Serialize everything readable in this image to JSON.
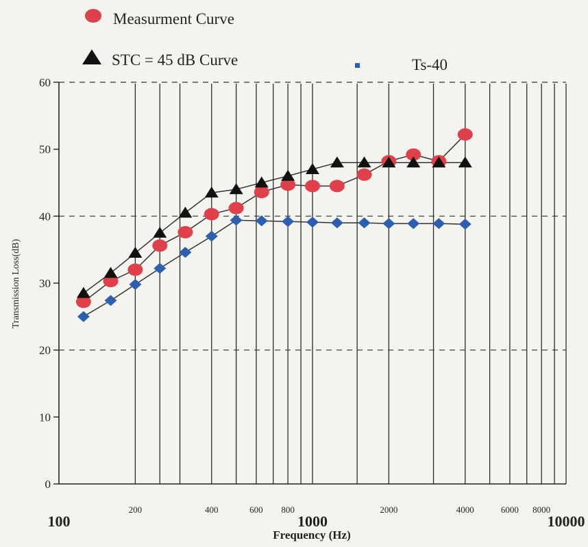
{
  "chart_data": {
    "type": "line",
    "xlabel": "Frequency (Hz)",
    "ylabel": "Transmission Loss(dB)",
    "x_scale": "log",
    "xlim": [
      100,
      10000
    ],
    "ylim": [
      0,
      60
    ],
    "x_ticks": [
      {
        "value": 100,
        "label": "100",
        "size": "large"
      },
      {
        "value": 200,
        "label": "200",
        "size": "small"
      },
      {
        "value": 400,
        "label": "400",
        "size": "small"
      },
      {
        "value": 600,
        "label": "600",
        "size": "small"
      },
      {
        "value": 800,
        "label": "800",
        "size": "small"
      },
      {
        "value": 1000,
        "label": "1000",
        "size": "large"
      },
      {
        "value": 2000,
        "label": "2000",
        "size": "small"
      },
      {
        "value": 4000,
        "label": "4000",
        "size": "small"
      },
      {
        "value": 6000,
        "label": "6000",
        "size": "small"
      },
      {
        "value": 8000,
        "label": "8000",
        "size": "small"
      },
      {
        "value": 10000,
        "label": "10000",
        "size": "large"
      }
    ],
    "x_gridlines": [
      200,
      250,
      300,
      400,
      500,
      600,
      700,
      800,
      900,
      1000,
      1500,
      2000,
      3000,
      4000,
      5000,
      6000,
      7000,
      8000,
      9000,
      10000
    ],
    "y_ticks": [
      {
        "value": 0,
        "label": "0"
      },
      {
        "value": 10,
        "label": "10"
      },
      {
        "value": 20,
        "label": "20"
      },
      {
        "value": 30,
        "label": "30"
      },
      {
        "value": 40,
        "label": "40"
      },
      {
        "value": 50,
        "label": "50"
      },
      {
        "value": 60,
        "label": "60"
      }
    ],
    "y_dashed_gridlines": [
      20,
      40,
      60
    ],
    "legend_placement": "top",
    "series": [
      {
        "name": "Measurment Curve",
        "marker": "circle",
        "color": "#e0404a",
        "line_color": "#333333",
        "x": [
          125,
          160,
          200,
          250,
          315,
          400,
          500,
          630,
          800,
          1000,
          1250,
          1600,
          2000,
          2500,
          3150,
          4000
        ],
        "y": [
          27.2,
          30.3,
          32.0,
          35.6,
          37.6,
          40.3,
          41.2,
          43.6,
          44.7,
          44.5,
          44.5,
          46.2,
          48.2,
          49.2,
          48.2,
          52.2
        ]
      },
      {
        "name": "STC = 45 dB Curve",
        "marker": "triangle",
        "color": "#111111",
        "line_color": "#333333",
        "x": [
          125,
          160,
          200,
          250,
          315,
          400,
          500,
          630,
          800,
          1000,
          1250,
          1600,
          2000,
          2500,
          3150,
          4000
        ],
        "y": [
          28.5,
          31.5,
          34.5,
          37.5,
          40.5,
          43.5,
          44.0,
          45.0,
          46.0,
          47.0,
          48.0,
          48.0,
          48.0,
          48.0,
          48.0,
          48.0
        ]
      },
      {
        "name": "Ts-40",
        "marker": "diamond",
        "color": "#2d5fb0",
        "line_color": "#333333",
        "x": [
          125,
          160,
          200,
          250,
          315,
          400,
          500,
          630,
          800,
          1000,
          1250,
          1600,
          2000,
          2500,
          3150,
          4000
        ],
        "y": [
          25.0,
          27.4,
          29.8,
          32.2,
          34.6,
          37.0,
          39.4,
          39.3,
          39.2,
          39.1,
          39.0,
          39.0,
          38.9,
          38.9,
          38.9,
          38.8
        ]
      }
    ]
  }
}
